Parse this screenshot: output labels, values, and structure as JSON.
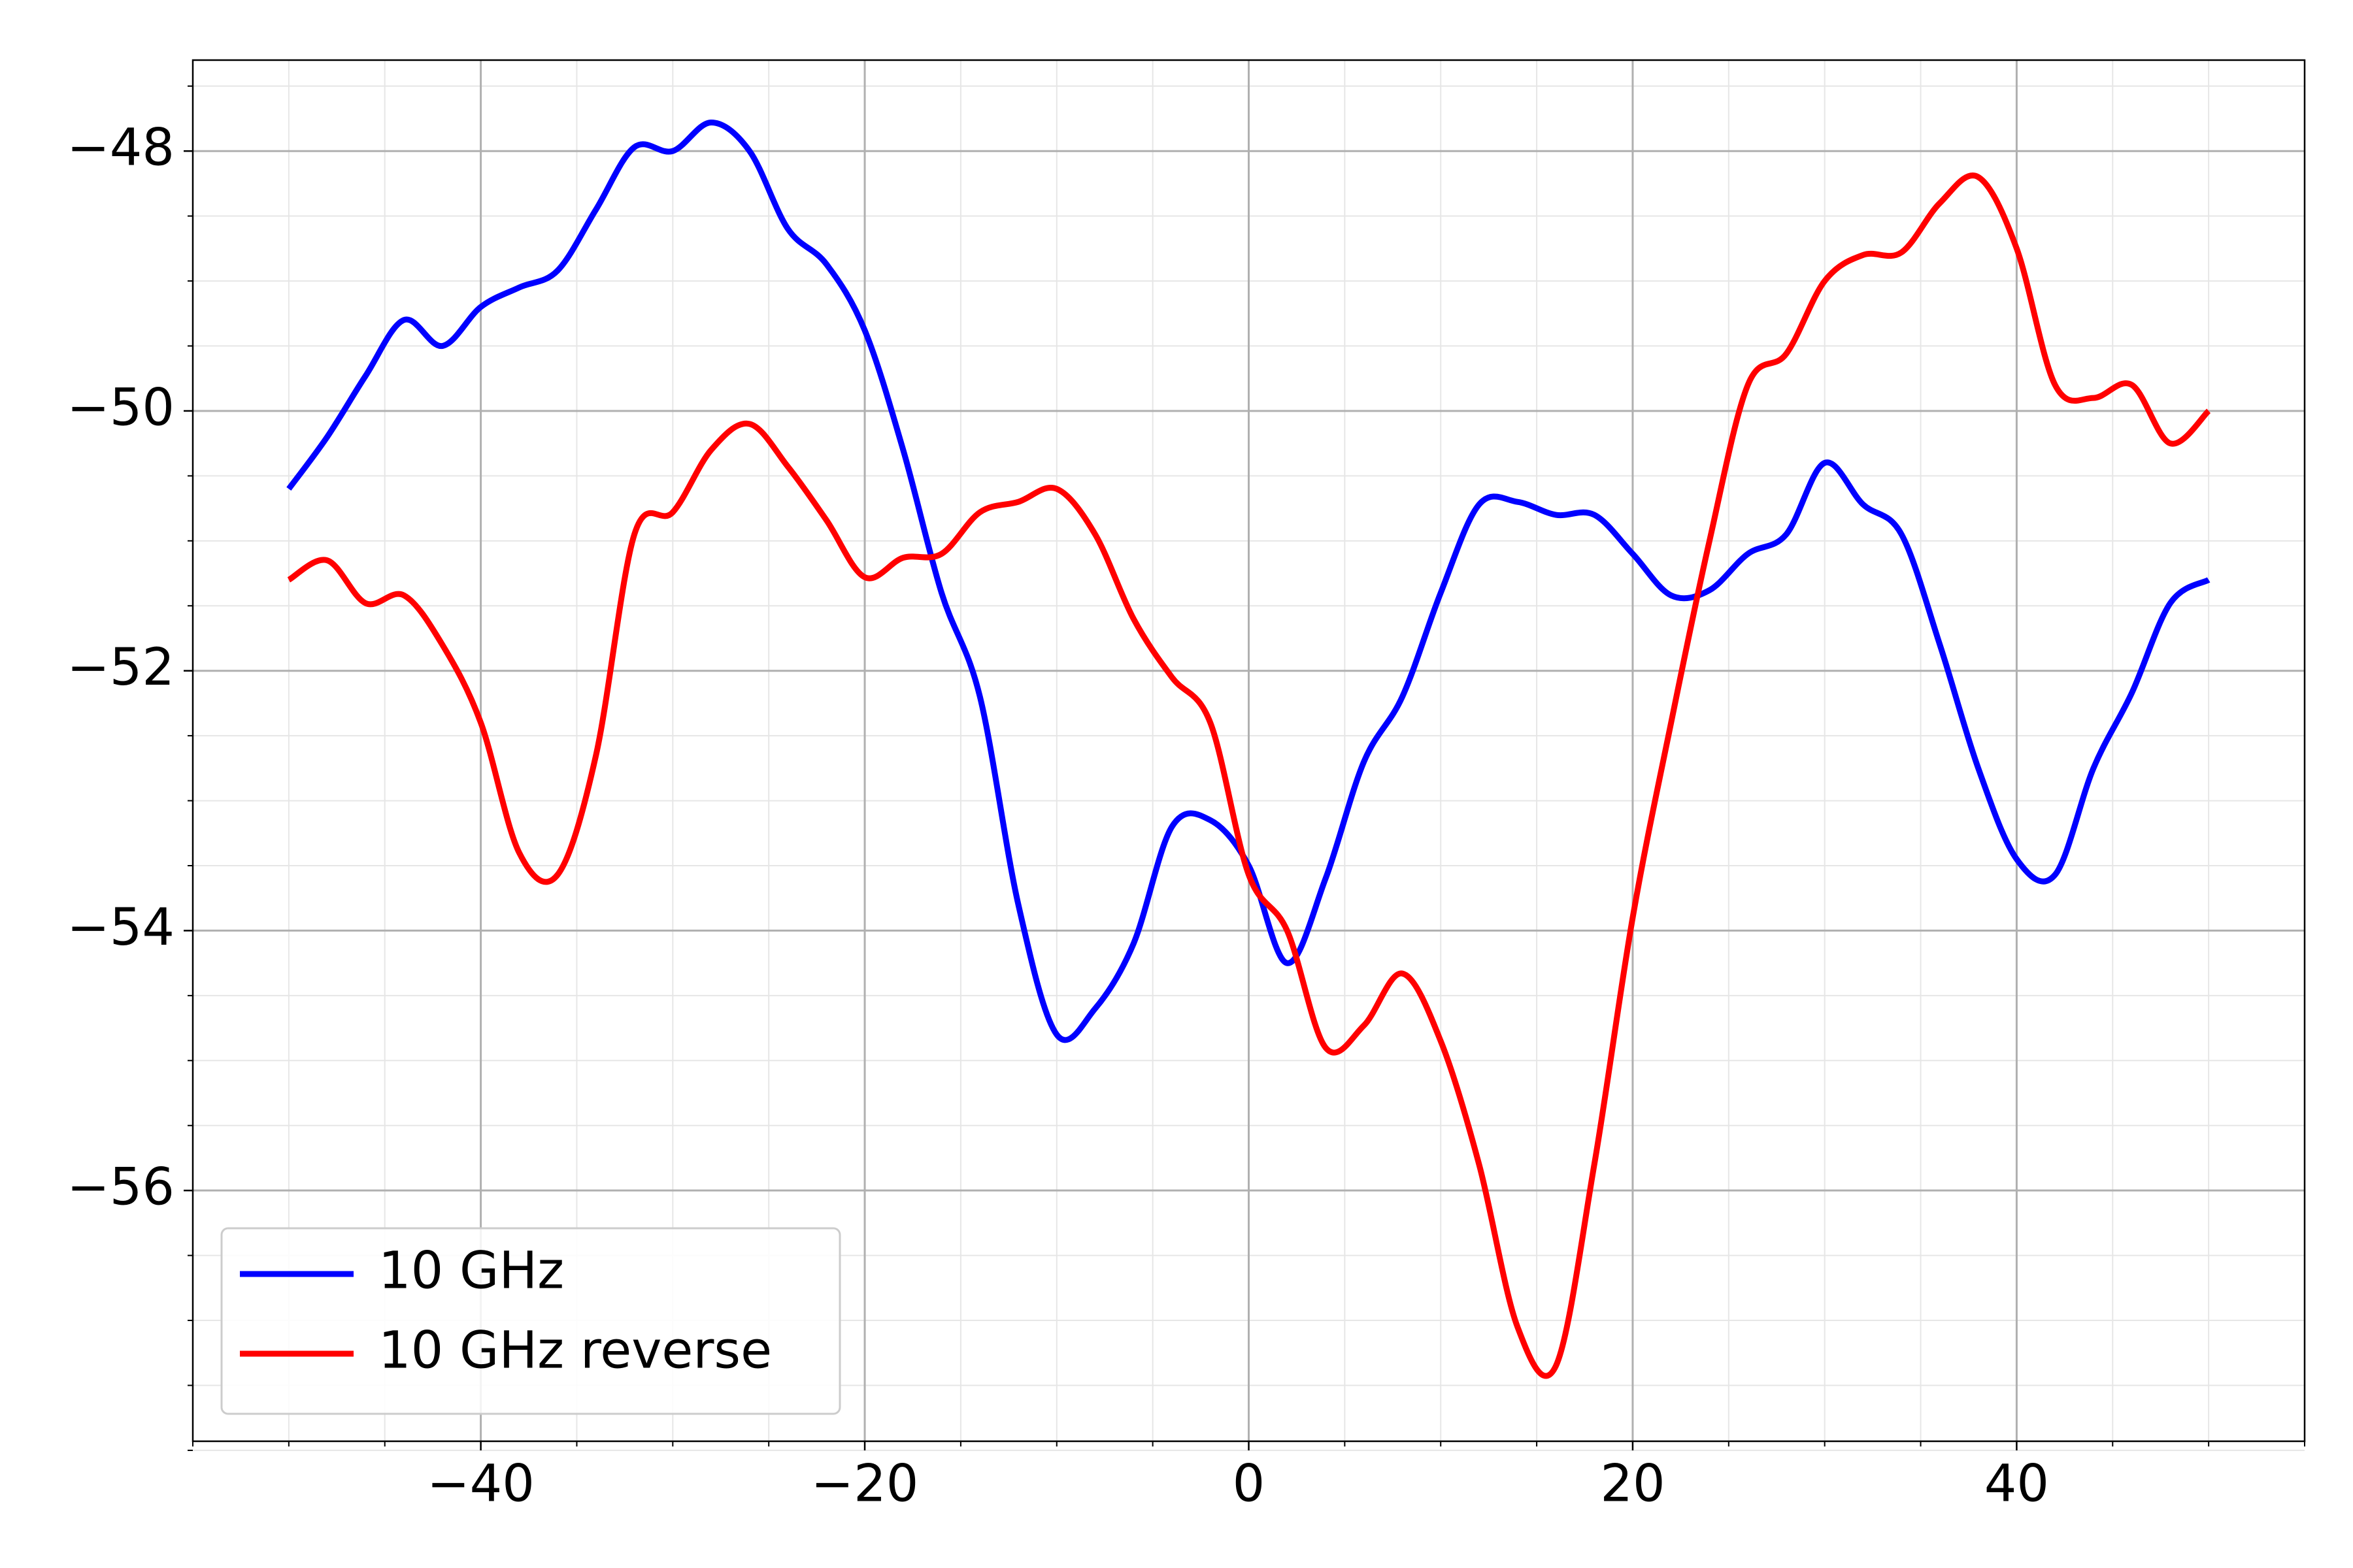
{
  "chart_data": {
    "type": "line",
    "x": [
      -50,
      -48,
      -46,
      -44,
      -42,
      -40,
      -38,
      -36,
      -34,
      -32,
      -30,
      -28,
      -26,
      -24,
      -22,
      -20,
      -18,
      -16,
      -14,
      -12,
      -10,
      -8,
      -6,
      -4,
      -2,
      0,
      2,
      4,
      6,
      8,
      10,
      12,
      14,
      16,
      18,
      20,
      22,
      24,
      26,
      28,
      30,
      32,
      34,
      36,
      38,
      40,
      42,
      44,
      46,
      48,
      50
    ],
    "series": [
      {
        "name": "10 GHz",
        "color": "#0000ff",
        "values": [
          -50.6,
          -50.2,
          -49.73,
          -49.3,
          -49.5,
          -49.2,
          -49.05,
          -48.92,
          -48.45,
          -47.97,
          -48.0,
          -47.78,
          -48.0,
          -48.6,
          -48.87,
          -49.38,
          -50.3,
          -51.4,
          -52.2,
          -53.8,
          -54.8,
          -54.6,
          -54.1,
          -53.2,
          -53.15,
          -53.5,
          -54.25,
          -53.6,
          -52.7,
          -52.2,
          -51.4,
          -50.72,
          -50.7,
          -50.8,
          -50.8,
          -51.1,
          -51.42,
          -51.38,
          -51.1,
          -50.95,
          -50.4,
          -50.72,
          -50.95,
          -51.8,
          -52.75,
          -53.45,
          -53.57,
          -52.75,
          -52.17,
          -51.48,
          -51.3
        ]
      },
      {
        "name": "10 GHz reverse",
        "color": "#ff0000",
        "values": [
          -51.3,
          -51.15,
          -51.48,
          -51.42,
          -51.8,
          -52.4,
          -53.4,
          -53.57,
          -52.65,
          -50.95,
          -50.78,
          -50.3,
          -50.1,
          -50.43,
          -50.84,
          -51.28,
          -51.13,
          -51.1,
          -50.78,
          -50.7,
          -50.6,
          -50.95,
          -51.6,
          -52.05,
          -52.4,
          -53.57,
          -54.0,
          -54.9,
          -54.73,
          -54.33,
          -54.85,
          -55.8,
          -57.05,
          -57.35,
          -55.8,
          -53.9,
          -52.4,
          -51.0,
          -49.8,
          -49.56,
          -49.0,
          -48.8,
          -48.78,
          -48.4,
          -48.2,
          -48.75,
          -49.8,
          -49.9,
          -49.8,
          -50.25,
          -50.0
        ]
      }
    ],
    "xlim": [
      -55,
      55
    ],
    "ylim": [
      -57.93,
      -47.3
    ],
    "xticks": [
      {
        "value": -40,
        "label": "−40"
      },
      {
        "value": -20,
        "label": "−20"
      },
      0,
      20,
      40
    ],
    "yticks": [
      {
        "value": -56,
        "label": "−56"
      },
      {
        "value": -54,
        "label": "−54"
      },
      {
        "value": -52,
        "label": "−52"
      },
      {
        "value": -50,
        "label": "−50"
      },
      {
        "value": -48,
        "label": "−48"
      }
    ],
    "grid": true,
    "minor_grid": true,
    "legend": "lower left"
  }
}
